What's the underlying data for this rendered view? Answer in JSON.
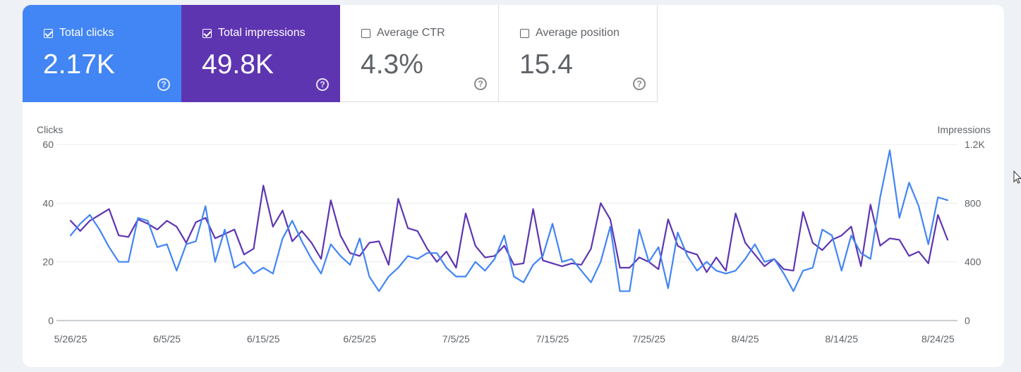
{
  "metrics": [
    {
      "label": "Total clicks",
      "value": "2.17K",
      "checked": true,
      "color": "#4285f4"
    },
    {
      "label": "Total impressions",
      "value": "49.8K",
      "checked": true,
      "color": "#5e35b1"
    },
    {
      "label": "Average CTR",
      "value": "4.3%",
      "checked": false
    },
    {
      "label": "Average position",
      "value": "15.4",
      "checked": false
    }
  ],
  "help_glyph": "?",
  "chart_data": {
    "type": "line",
    "x_start": "5/26/25",
    "x_ticks": [
      "5/26/25",
      "6/5/25",
      "6/15/25",
      "6/25/25",
      "7/5/25",
      "7/15/25",
      "7/25/25",
      "8/4/25",
      "8/14/25",
      "8/24/25"
    ],
    "y_left_label": "Clicks",
    "y_left_ticks": [
      "0",
      "20",
      "40",
      "60"
    ],
    "y_left_lim": [
      0,
      60
    ],
    "y_right_label": "Impressions",
    "y_right_ticks": [
      "0",
      "400",
      "800",
      "1.2K"
    ],
    "y_right_lim": [
      0,
      1200
    ],
    "grid": true,
    "series": [
      {
        "name": "Total clicks",
        "axis": "left",
        "color": "#4285f4",
        "values": [
          29,
          33,
          36,
          31,
          25,
          20,
          20,
          35,
          34,
          25,
          26,
          17,
          26,
          27,
          39,
          20,
          31,
          18,
          20,
          16,
          18,
          16,
          28,
          34,
          27,
          21,
          16,
          26,
          22,
          19,
          28,
          15,
          10,
          15,
          18,
          22,
          21,
          23,
          23,
          18,
          15,
          15,
          20,
          17,
          21,
          29,
          15,
          13,
          19,
          22,
          33,
          20,
          21,
          17,
          13,
          20,
          32,
          10,
          10,
          31,
          20,
          25,
          11,
          30,
          22,
          17,
          20,
          17,
          16,
          17,
          21,
          26,
          20,
          21,
          16,
          10,
          17,
          18,
          31,
          29,
          17,
          29,
          23,
          21,
          42,
          58,
          35,
          47,
          39,
          26,
          42,
          41
        ]
      },
      {
        "name": "Total impressions",
        "axis": "right",
        "color": "#5e35b1",
        "values": [
          680,
          610,
          680,
          720,
          760,
          580,
          570,
          690,
          660,
          620,
          680,
          640,
          530,
          670,
          700,
          560,
          590,
          620,
          450,
          490,
          920,
          640,
          750,
          540,
          610,
          530,
          420,
          820,
          580,
          460,
          440,
          530,
          540,
          380,
          830,
          630,
          610,
          490,
          400,
          470,
          360,
          730,
          510,
          430,
          440,
          510,
          380,
          390,
          760,
          410,
          390,
          370,
          390,
          380,
          490,
          800,
          690,
          360,
          360,
          430,
          400,
          350,
          690,
          510,
          470,
          450,
          330,
          430,
          340,
          730,
          530,
          450,
          370,
          420,
          350,
          340,
          740,
          530,
          480,
          550,
          580,
          640,
          370,
          790,
          510,
          560,
          550,
          440,
          470,
          390,
          720,
          550
        ]
      }
    ]
  }
}
